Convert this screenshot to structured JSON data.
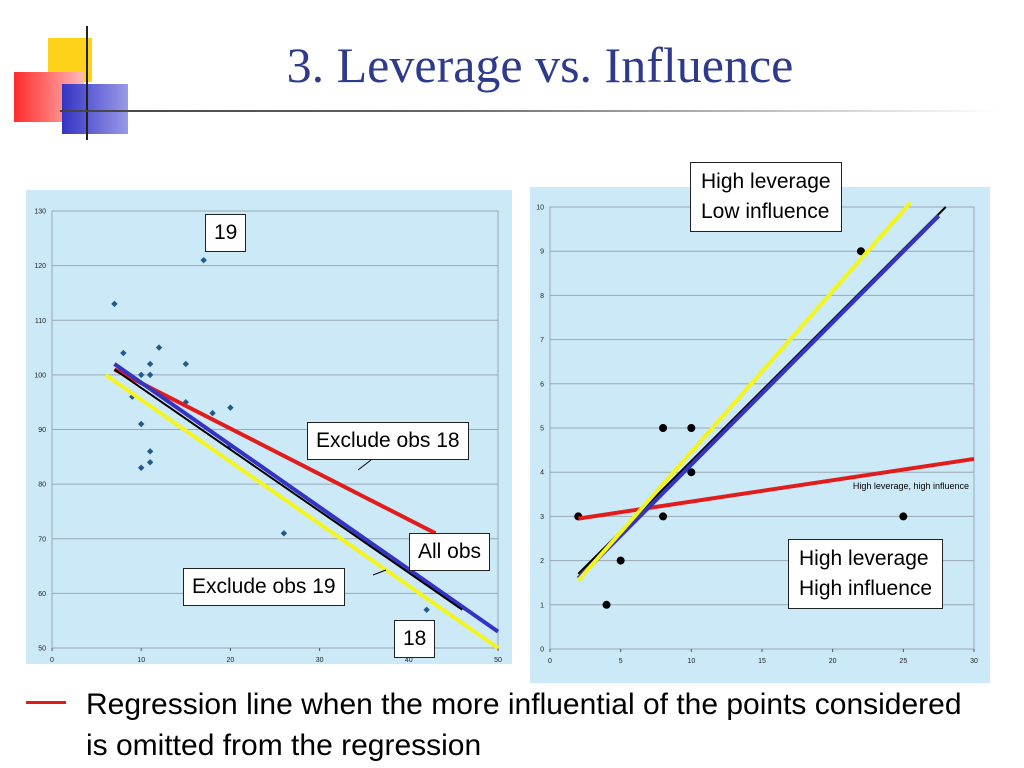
{
  "title": "3. Leverage vs. Influence",
  "colors": {
    "title": "#2e3a8c",
    "red": "#e21b1b",
    "blue": "#3434c4",
    "yellow": "#f5f51e",
    "black": "#000000",
    "left_points": "#1f5a8c",
    "panel_bg": "#cce9f7"
  },
  "chart_data": [
    {
      "type": "scatter",
      "title": "",
      "xlabel": "",
      "ylabel": "",
      "xlim": [
        0,
        50
      ],
      "ylim": [
        50,
        130
      ],
      "xticks": [
        0,
        10,
        20,
        30,
        40,
        50
      ],
      "yticks": [
        50,
        60,
        70,
        80,
        90,
        100,
        110,
        120,
        130
      ],
      "grid": true,
      "points": [
        [
          7,
          113
        ],
        [
          8,
          104
        ],
        [
          9,
          96
        ],
        [
          10,
          100
        ],
        [
          10,
          91
        ],
        [
          10,
          83
        ],
        [
          11,
          102
        ],
        [
          11,
          100
        ],
        [
          11,
          86
        ],
        [
          11,
          84
        ],
        [
          12,
          105
        ],
        [
          15,
          102
        ],
        [
          15,
          95
        ],
        [
          18,
          93
        ],
        [
          20,
          94
        ],
        [
          20,
          87
        ],
        [
          17,
          121
        ],
        [
          26,
          71
        ],
        [
          42,
          57
        ]
      ],
      "lines": [
        {
          "color": "red",
          "x": [
            7,
            43
          ],
          "y": [
            101,
            71
          ]
        },
        {
          "color": "blue",
          "x": [
            7,
            50
          ],
          "y": [
            102,
            53
          ]
        },
        {
          "color": "black",
          "x": [
            7,
            46
          ],
          "y": [
            101,
            57
          ]
        },
        {
          "color": "yellow",
          "x": [
            6,
            50
          ],
          "y": [
            100,
            50
          ]
        }
      ],
      "annotations": {
        "obs19": "19",
        "obs18": "18",
        "exclude18": "Exclude obs 18",
        "allobs": "All obs",
        "exclude19": "Exclude obs 19"
      }
    },
    {
      "type": "scatter",
      "title": "",
      "xlabel": "",
      "ylabel": "",
      "xlim": [
        0,
        30
      ],
      "ylim": [
        0,
        10
      ],
      "xticks": [
        0,
        5,
        10,
        15,
        20,
        25,
        30
      ],
      "yticks": [
        0,
        1,
        2,
        3,
        4,
        5,
        6,
        7,
        8,
        9,
        10
      ],
      "grid": true,
      "points": [
        [
          2,
          3
        ],
        [
          4,
          1
        ],
        [
          5,
          2
        ],
        [
          8,
          5
        ],
        [
          8,
          3
        ],
        [
          10,
          5
        ],
        [
          10,
          4
        ],
        [
          22,
          9
        ],
        [
          25,
          3
        ]
      ],
      "lines": [
        {
          "color": "red",
          "x": [
            2,
            30
          ],
          "y": [
            2.95,
            4.3
          ]
        },
        {
          "color": "black",
          "x": [
            2,
            28
          ],
          "y": [
            1.7,
            10
          ]
        },
        {
          "color": "blue",
          "x": [
            2,
            27.5
          ],
          "y": [
            1.6,
            9.8
          ]
        },
        {
          "color": "yellow",
          "x": [
            2,
            25.5
          ],
          "y": [
            1.55,
            10.1
          ]
        }
      ],
      "annotations": {
        "hl_li_line1": "High leverage",
        "hl_li_line2": "Low influence",
        "hl_hi_small": "High leverage, high influence",
        "hl_hi_line1": "High leverage",
        "hl_hi_line2": "High influence"
      }
    }
  ],
  "legend": {
    "text": "Regression line when the more influential of the points considered is omitted from the regression"
  }
}
